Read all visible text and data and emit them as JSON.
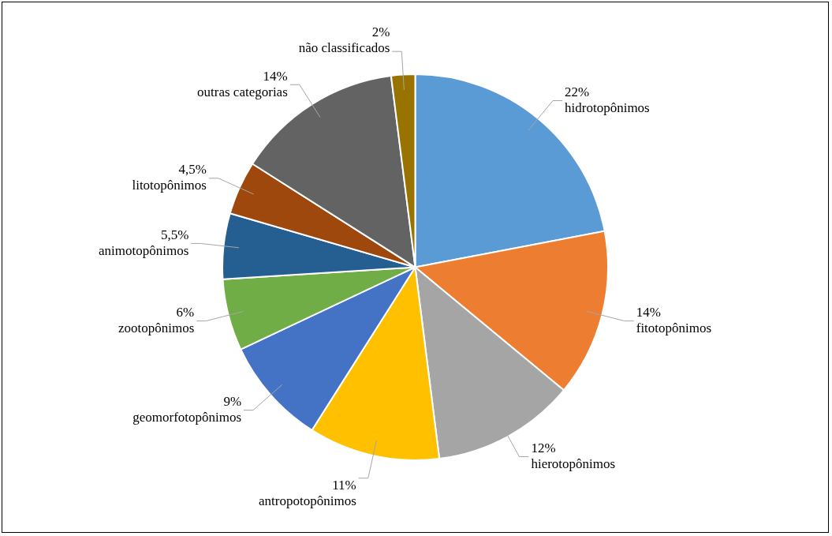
{
  "chart_data": {
    "type": "pie",
    "categories": [
      "hidrotopônimos",
      "fitotopônimos",
      "hierotopônimos",
      "antropotopônimos",
      "geomorfotopônimos",
      "zootopônimos",
      "animotopônimos",
      "litotopônimos",
      "outras categorias",
      "não classificados"
    ],
    "values": [
      22,
      14,
      12,
      11,
      9,
      6,
      5.5,
      4.5,
      14,
      2
    ],
    "value_labels": [
      "22%",
      "14%",
      "12%",
      "11%",
      "9%",
      "6%",
      "5,5%",
      "4,5%",
      "14%",
      "2%"
    ],
    "colors": [
      "#5b9bd5",
      "#ed7d31",
      "#a5a5a5",
      "#ffc000",
      "#4472c4",
      "#70ad47",
      "#255e91",
      "#9e480e",
      "#636363",
      "#997300"
    ],
    "legend": false
  }
}
